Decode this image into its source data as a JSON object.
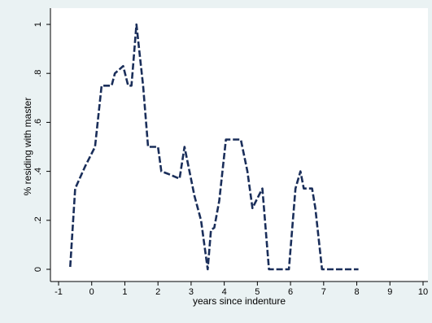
{
  "chart_data": {
    "type": "line",
    "title": "",
    "xlabel": "years since indenture",
    "ylabel": "% residing with master",
    "xlim": [
      -1,
      10
    ],
    "ylim": [
      0,
      1
    ],
    "x_ticks": [
      "-1",
      "0",
      "1",
      "2",
      "3",
      "4",
      "5",
      "6",
      "7",
      "8",
      "9",
      "10"
    ],
    "y_ticks": [
      "0",
      ".2",
      ".4",
      ".6",
      ".8",
      "1"
    ],
    "grid": false,
    "legend": "none",
    "series": [
      {
        "color": "#1a2e5a",
        "line_style": "dashed",
        "x": [
          -0.65,
          -0.5,
          -0.2,
          0.1,
          0.3,
          0.5,
          0.6,
          0.7,
          0.95,
          1.1,
          1.2,
          1.35,
          1.55,
          1.7,
          1.85,
          2.0,
          2.1,
          2.3,
          2.65,
          2.8,
          2.95,
          3.1,
          3.3,
          3.5,
          3.6,
          3.7,
          3.85,
          4.05,
          4.2,
          4.5,
          4.7,
          4.85,
          5.0,
          5.15,
          5.35,
          5.5,
          5.65,
          5.7,
          5.95,
          6.15,
          6.3,
          6.4,
          6.55,
          6.65,
          6.75,
          6.95,
          7.2,
          7.5,
          8.05
        ],
        "y": [
          0.01,
          0.33,
          0.42,
          0.5,
          0.75,
          0.75,
          0.75,
          0.8,
          0.83,
          0.75,
          0.75,
          1.0,
          0.75,
          0.5,
          0.5,
          0.5,
          0.4,
          0.39,
          0.37,
          0.5,
          0.4,
          0.3,
          0.2,
          0.0,
          0.16,
          0.17,
          0.28,
          0.53,
          0.53,
          0.53,
          0.4,
          0.25,
          0.29,
          0.33,
          0.0,
          0.0,
          0.0,
          0.0,
          0.0,
          0.33,
          0.4,
          0.33,
          0.33,
          0.33,
          0.25,
          0.0,
          0.0,
          0.0,
          0.0
        ]
      }
    ]
  },
  "colors": {
    "outer_background": "#eaf2f3",
    "plot_background": "#ffffff",
    "axis": "#000000"
  }
}
